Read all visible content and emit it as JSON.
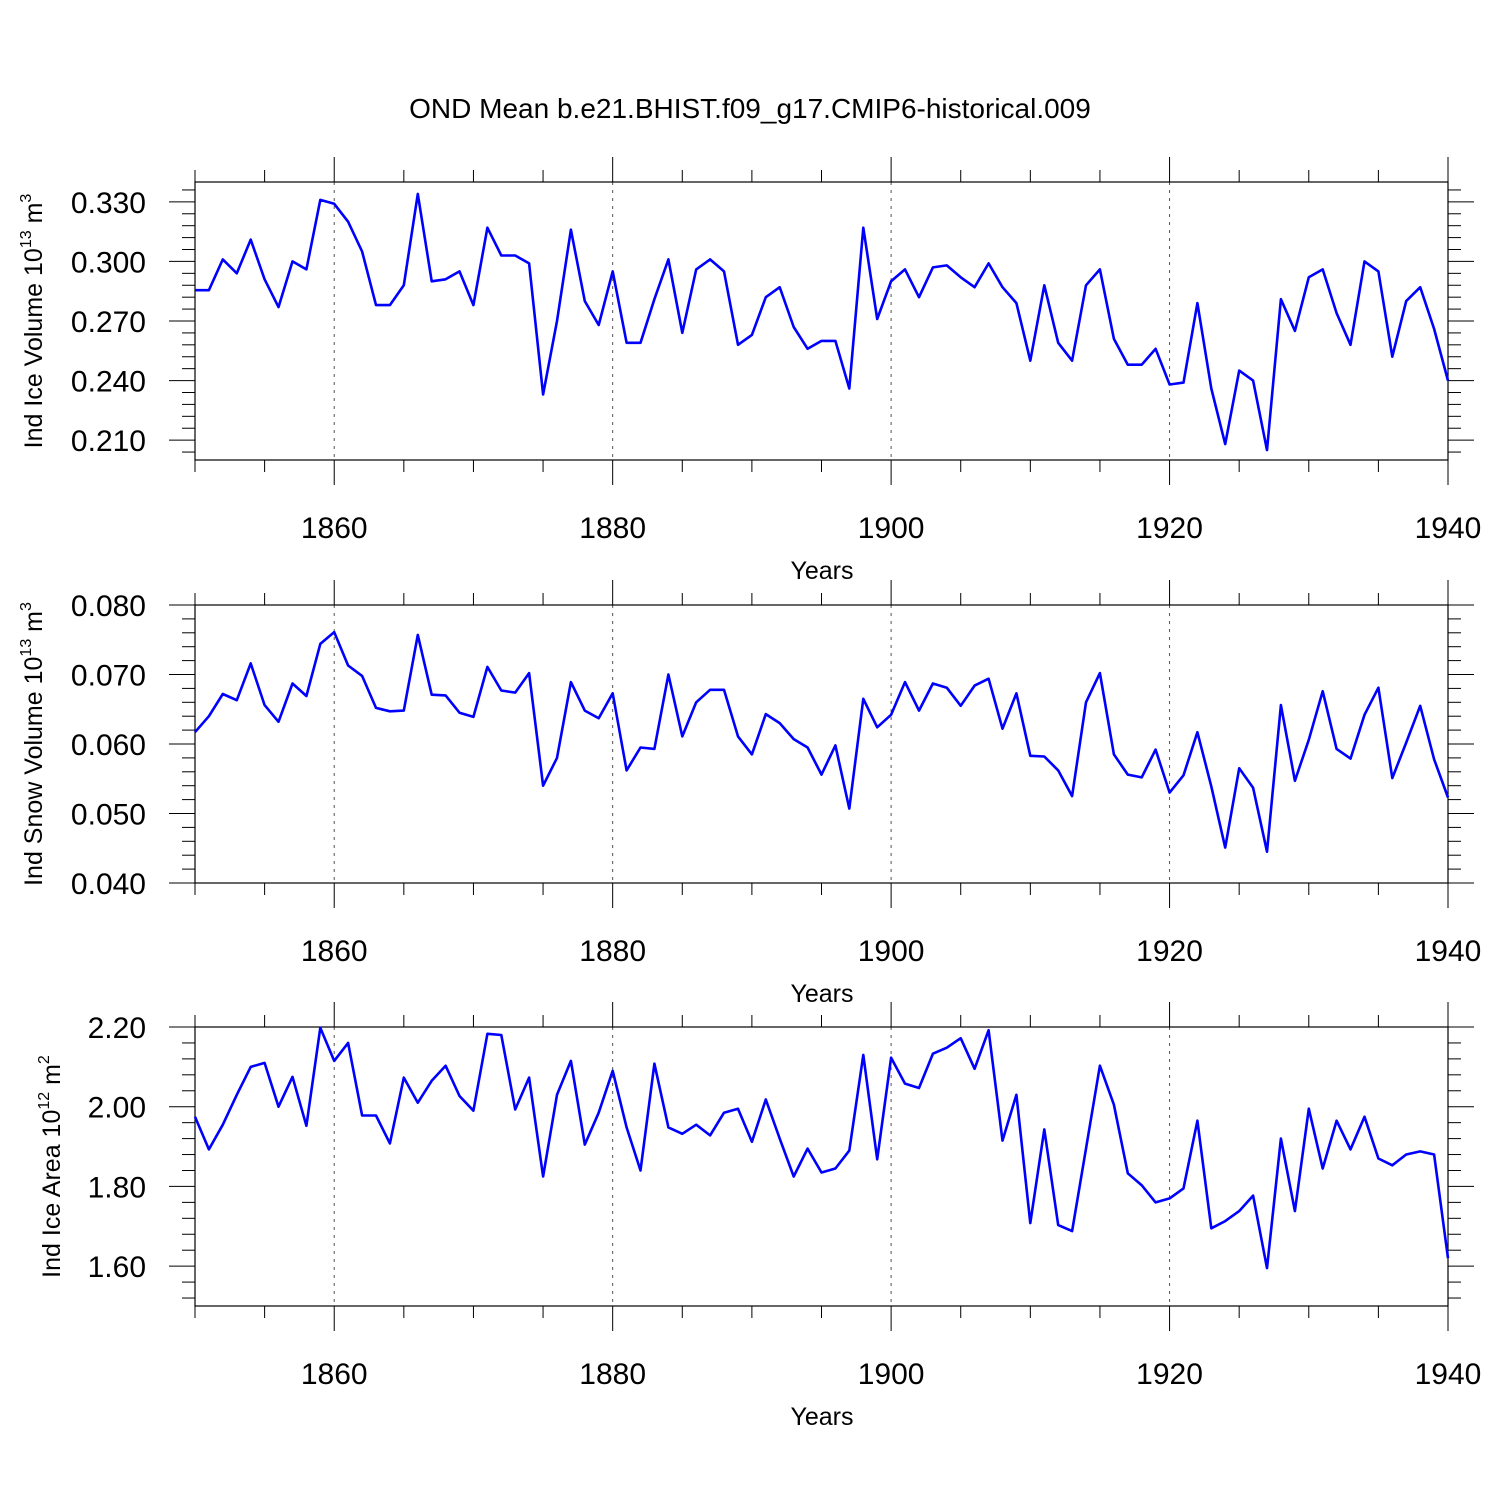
{
  "chart_data": {
    "type": "line",
    "title": "OND Mean b.e21.BHIST.f09_g17.CMIP6-historical.009",
    "line_color": "#0000ff",
    "grid": "dashed vertical lines at major x ticks",
    "panels": [
      {
        "ylabel": "Ind Ice Volume 10",
        "ylabel_exp": "13",
        "ylabel_unit": " m",
        "ylabel_unit_exp": "3",
        "xlabel": "Years",
        "xlim": [
          1850,
          1940
        ],
        "ylim": [
          0.2,
          0.34
        ],
        "x_ticks": [
          "1860",
          "1880",
          "1900",
          "1920",
          "1940"
        ],
        "y_ticks": [
          "0.210",
          "0.240",
          "0.270",
          "0.300",
          "0.330"
        ],
        "x_start": 1850,
        "values": [
          0.2855,
          0.2855,
          0.301,
          0.294,
          0.311,
          0.291,
          0.277,
          0.3,
          0.296,
          0.331,
          0.329,
          0.32,
          0.305,
          0.278,
          0.278,
          0.288,
          0.334,
          0.29,
          0.291,
          0.295,
          0.278,
          0.317,
          0.303,
          0.303,
          0.299,
          0.233,
          0.27,
          0.316,
          0.28,
          0.268,
          0.295,
          0.259,
          0.259,
          0.281,
          0.301,
          0.264,
          0.296,
          0.301,
          0.295,
          0.258,
          0.263,
          0.282,
          0.287,
          0.267,
          0.256,
          0.26,
          0.26,
          0.236,
          0.317,
          0.271,
          0.29,
          0.296,
          0.282,
          0.297,
          0.298,
          0.292,
          0.287,
          0.299,
          0.287,
          0.279,
          0.25,
          0.288,
          0.259,
          0.25,
          0.288,
          0.296,
          0.261,
          0.248,
          0.248,
          0.256,
          0.238,
          0.239,
          0.279,
          0.236,
          0.208,
          0.245,
          0.24,
          0.205,
          0.281,
          0.265,
          0.292,
          0.296,
          0.274,
          0.258,
          0.3,
          0.295,
          0.252,
          0.28,
          0.287,
          0.266,
          0.24
        ]
      },
      {
        "ylabel": "Ind Snow Volume 10",
        "ylabel_exp": "13",
        "ylabel_unit": " m",
        "ylabel_unit_exp": "3",
        "xlabel": "Years",
        "xlim": [
          1850,
          1940
        ],
        "ylim": [
          0.04,
          0.08
        ],
        "x_ticks": [
          "1860",
          "1880",
          "1900",
          "1920",
          "1940"
        ],
        "y_ticks": [
          "0.040",
          "0.050",
          "0.060",
          "0.070",
          "0.080"
        ],
        "x_start": 1850,
        "values": [
          0.0617,
          0.064,
          0.0672,
          0.0663,
          0.0716,
          0.0656,
          0.0632,
          0.0687,
          0.0669,
          0.0744,
          0.0761,
          0.0713,
          0.0698,
          0.0652,
          0.0647,
          0.0648,
          0.0757,
          0.0671,
          0.067,
          0.0645,
          0.0639,
          0.0711,
          0.0677,
          0.0674,
          0.0702,
          0.054,
          0.058,
          0.0689,
          0.0648,
          0.0637,
          0.0673,
          0.0562,
          0.0595,
          0.0593,
          0.07,
          0.0611,
          0.066,
          0.0678,
          0.0678,
          0.0611,
          0.0585,
          0.0643,
          0.063,
          0.0607,
          0.0595,
          0.0556,
          0.0598,
          0.0507,
          0.0665,
          0.0624,
          0.0642,
          0.0689,
          0.0648,
          0.0687,
          0.0681,
          0.0655,
          0.0684,
          0.0694,
          0.0622,
          0.0673,
          0.0583,
          0.0582,
          0.0562,
          0.0525,
          0.066,
          0.0702,
          0.0585,
          0.0556,
          0.0552,
          0.0592,
          0.053,
          0.0555,
          0.0617,
          0.0539,
          0.0451,
          0.0565,
          0.0537,
          0.0445,
          0.0656,
          0.0547,
          0.0606,
          0.0676,
          0.0593,
          0.0579,
          0.0642,
          0.0681,
          0.0551,
          0.0602,
          0.0655,
          0.0578,
          0.0523
        ]
      },
      {
        "ylabel": "Ind Ice Area 10",
        "ylabel_exp": "12",
        "ylabel_unit": " m",
        "ylabel_unit_exp": "2",
        "xlabel": "Years",
        "xlim": [
          1850,
          1940
        ],
        "ylim": [
          1.5,
          2.2
        ],
        "x_ticks": [
          "1860",
          "1880",
          "1900",
          "1920",
          "1940"
        ],
        "y_ticks": [
          "1.60",
          "1.80",
          "2.00",
          "2.20"
        ],
        "x_start": 1850,
        "values": [
          1.975,
          1.893,
          1.955,
          2.03,
          2.1,
          2.11,
          2.0,
          2.075,
          1.952,
          2.198,
          2.115,
          2.16,
          1.978,
          1.978,
          1.908,
          2.073,
          2.01,
          2.065,
          2.103,
          2.027,
          1.99,
          2.183,
          2.18,
          1.993,
          2.073,
          1.825,
          2.03,
          2.115,
          1.905,
          1.985,
          2.09,
          1.948,
          1.84,
          2.108,
          1.948,
          1.932,
          1.955,
          1.928,
          1.985,
          1.995,
          1.912,
          2.018,
          1.92,
          1.825,
          1.895,
          1.835,
          1.845,
          1.89,
          2.13,
          1.868,
          2.123,
          2.058,
          2.047,
          2.133,
          2.148,
          2.172,
          2.095,
          2.192,
          1.915,
          2.03,
          1.708,
          1.943,
          1.703,
          1.688,
          1.895,
          2.103,
          2.005,
          1.833,
          1.803,
          1.76,
          1.77,
          1.795,
          1.965,
          1.695,
          1.713,
          1.738,
          1.777,
          1.595,
          1.92,
          1.738,
          1.995,
          1.845,
          1.965,
          1.893,
          1.975,
          1.87,
          1.853,
          1.88,
          1.888,
          1.88,
          1.62
        ]
      }
    ]
  }
}
